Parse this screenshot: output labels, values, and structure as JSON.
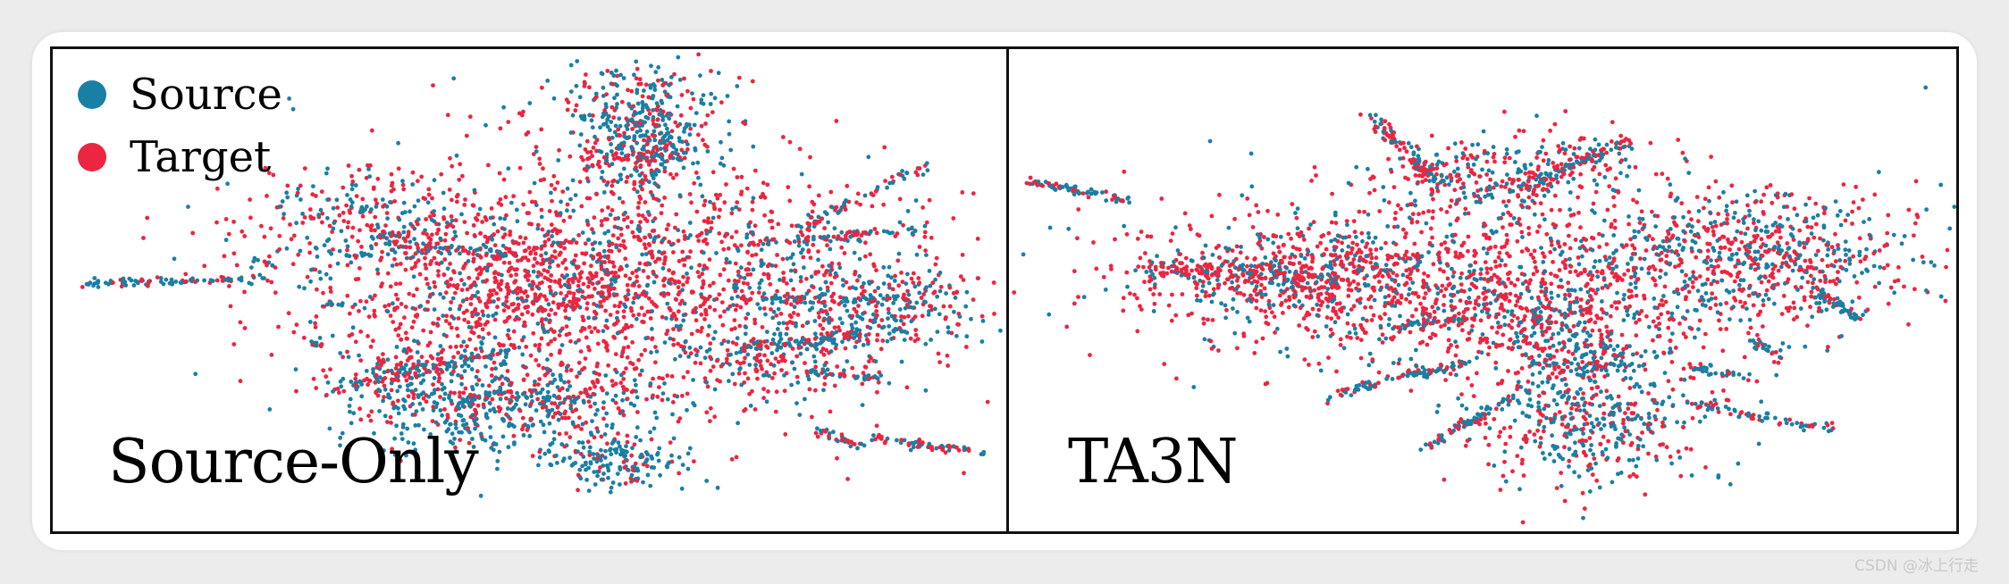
{
  "colors": {
    "source": "#1a7fa4",
    "target": "#ec2540"
  },
  "watermark": "CSDN @冰上行走",
  "chart_data": [
    {
      "type": "scatter",
      "title": "Source-Only",
      "legend": {
        "placement": "top-left",
        "entries": [
          {
            "name": "Source",
            "color": "#1a7fa4"
          },
          {
            "name": "Target",
            "color": "#ec2540"
          }
        ]
      },
      "grid": false,
      "axes": "none",
      "xlim": [
        0,
        100
      ],
      "ylim": [
        0,
        100
      ],
      "series": [
        {
          "name": "Source",
          "color": "#1a7fa4"
        },
        {
          "name": "Target",
          "color": "#ec2540"
        }
      ],
      "clusters": [
        {
          "cx": 60,
          "cy": 48,
          "sx": 18,
          "sy": 15,
          "n": 1500,
          "source_share": 0.3
        },
        {
          "cx": 44,
          "cy": 77,
          "sx": 8,
          "sy": 5,
          "n": 320,
          "source_share": 0.65
        },
        {
          "cx": 55,
          "cy": 73,
          "sx": 5,
          "sy": 3,
          "n": 120,
          "source_share": 0.55
        },
        {
          "cx": 62,
          "cy": 12,
          "sx": 3,
          "sy": 8,
          "n": 200,
          "source_share": 0.6
        },
        {
          "cx": 63,
          "cy": 18,
          "sx": 2,
          "sy": 3,
          "n": 80,
          "source_share": 0.7
        },
        {
          "cx": 88,
          "cy": 54,
          "sx": 6,
          "sy": 5,
          "n": 260,
          "source_share": 0.65
        },
        {
          "cx": 62,
          "cy": 9,
          "sx": 6,
          "sy": 4,
          "n": 110,
          "source_share": 0.5
        },
        {
          "cx": 61,
          "cy": 22,
          "sx": 4,
          "sy": 4,
          "n": 120,
          "source_share": 0.5
        },
        {
          "cx": 59,
          "cy": 88,
          "sx": 4,
          "sy": 3,
          "n": 180,
          "source_share": 0.75
        },
        {
          "cx": 33,
          "cy": 34,
          "sx": 7,
          "sy": 6,
          "n": 220,
          "source_share": 0.4
        },
        {
          "cx": 39,
          "cy": 68,
          "sx": 5,
          "sy": 4,
          "n": 150,
          "source_share": 0.55
        },
        {
          "cx": 76,
          "cy": 66,
          "sx": 4,
          "sy": 4,
          "n": 120,
          "source_share": 0.5
        },
        {
          "cx": 52,
          "cy": 49,
          "sx": 9,
          "sy": 8,
          "n": 500,
          "source_share": 0.12
        }
      ],
      "strands": [
        {
          "x1": 2,
          "y1": 48.5,
          "x2": 22,
          "y2": 47.5,
          "n": 90,
          "w": 0.5,
          "source_share": 0.75
        },
        {
          "x1": 35,
          "y1": 40,
          "x2": 49,
          "y2": 42,
          "n": 60,
          "w": 0.7,
          "source_share": 0.6
        },
        {
          "x1": 29,
          "y1": 72,
          "x2": 48,
          "y2": 63,
          "n": 90,
          "w": 0.7,
          "source_share": 0.6
        },
        {
          "x1": 73,
          "y1": 63,
          "x2": 86,
          "y2": 60,
          "n": 70,
          "w": 0.7,
          "source_share": 0.7
        },
        {
          "x1": 73,
          "y1": 40,
          "x2": 93,
          "y2": 36,
          "n": 80,
          "w": 0.6,
          "source_share": 0.5
        },
        {
          "x1": 79,
          "y1": 36,
          "x2": 93,
          "y2": 22,
          "n": 60,
          "w": 0.7,
          "source_share": 0.45
        },
        {
          "x1": 72,
          "y1": 52,
          "x2": 90,
          "y2": 52,
          "n": 70,
          "w": 0.6,
          "source_share": 0.7
        },
        {
          "x1": 80,
          "y1": 68,
          "x2": 88,
          "y2": 70,
          "n": 40,
          "w": 0.5,
          "source_share": 0.6
        },
        {
          "x1": 81,
          "y1": 81,
          "x2": 86,
          "y2": 85,
          "n": 30,
          "w": 0.5,
          "source_share": 0.6
        },
        {
          "x1": 87,
          "y1": 83,
          "x2": 99,
          "y2": 86,
          "n": 60,
          "w": 0.5,
          "source_share": 0.6
        },
        {
          "x1": 42,
          "y1": 75,
          "x2": 48,
          "y2": 72,
          "n": 30,
          "w": 0.5,
          "source_share": 0.8
        },
        {
          "x1": 26,
          "y1": 62,
          "x2": 28,
          "y2": 62,
          "n": 12,
          "w": 0.3,
          "source_share": 0.7
        },
        {
          "x1": 30,
          "y1": 42,
          "x2": 33,
          "y2": 42,
          "n": 12,
          "w": 0.3,
          "source_share": 0.7
        },
        {
          "x1": 28,
          "y1": 53,
          "x2": 32,
          "y2": 53,
          "n": 10,
          "w": 0.3,
          "source_share": 0.7
        },
        {
          "x1": 20,
          "y1": 43,
          "x2": 23,
          "y2": 45,
          "n": 10,
          "w": 0.3,
          "source_share": 0.6
        }
      ]
    },
    {
      "type": "scatter",
      "title": "TA3N",
      "grid": false,
      "axes": "none",
      "xlim": [
        0,
        100
      ],
      "ylim": [
        0,
        100
      ],
      "series": [
        {
          "name": "Source",
          "color": "#1a7fa4"
        },
        {
          "name": "Target",
          "color": "#ec2540"
        }
      ],
      "clusters": [
        {
          "cx": 48,
          "cy": 48,
          "sx": 18,
          "sy": 10,
          "n": 1300,
          "source_share": 0.3
        },
        {
          "cx": 80,
          "cy": 42,
          "sx": 9,
          "sy": 8,
          "n": 600,
          "source_share": 0.5
        },
        {
          "cx": 62,
          "cy": 79,
          "sx": 6,
          "sy": 7,
          "n": 420,
          "source_share": 0.5
        },
        {
          "cx": 57,
          "cy": 58,
          "sx": 5,
          "sy": 5,
          "n": 200,
          "source_share": 0.55
        },
        {
          "cx": 48,
          "cy": 25,
          "sx": 5,
          "sy": 4,
          "n": 150,
          "source_share": 0.45
        },
        {
          "cx": 59,
          "cy": 22,
          "sx": 5,
          "sy": 4,
          "n": 150,
          "source_share": 0.45
        },
        {
          "cx": 30,
          "cy": 47,
          "sx": 9,
          "sy": 5,
          "n": 300,
          "source_share": 0.3
        },
        {
          "cx": 62,
          "cy": 66,
          "sx": 4,
          "sy": 4,
          "n": 120,
          "source_share": 0.5
        }
      ],
      "strands": [
        {
          "x1": 1,
          "y1": 26,
          "x2": 12,
          "y2": 30,
          "n": 70,
          "w": 0.5,
          "source_share": 0.65
        },
        {
          "x1": 13,
          "y1": 45,
          "x2": 35,
          "y2": 48,
          "n": 160,
          "w": 1.3,
          "source_share": 0.35
        },
        {
          "x1": 38,
          "y1": 12,
          "x2": 45,
          "y2": 26,
          "n": 100,
          "w": 0.9,
          "source_share": 0.4
        },
        {
          "x1": 54,
          "y1": 28,
          "x2": 65,
          "y2": 17,
          "n": 100,
          "w": 0.9,
          "source_share": 0.45
        },
        {
          "x1": 33,
          "y1": 74,
          "x2": 45,
          "y2": 67,
          "n": 60,
          "w": 0.5,
          "source_share": 0.65
        },
        {
          "x1": 43,
          "y1": 69,
          "x2": 48,
          "y2": 66,
          "n": 30,
          "w": 0.5,
          "source_share": 0.6
        },
        {
          "x1": 43,
          "y1": 86,
          "x2": 53,
          "y2": 74,
          "n": 70,
          "w": 0.6,
          "source_share": 0.6
        },
        {
          "x1": 40,
          "y1": 58,
          "x2": 48,
          "y2": 56,
          "n": 40,
          "w": 0.6,
          "source_share": 0.5
        },
        {
          "x1": 72,
          "y1": 75,
          "x2": 88,
          "y2": 81,
          "n": 70,
          "w": 0.6,
          "source_share": 0.55
        },
        {
          "x1": 73,
          "y1": 67,
          "x2": 80,
          "y2": 70,
          "n": 30,
          "w": 0.5,
          "source_share": 0.6
        },
        {
          "x1": 86,
          "y1": 50,
          "x2": 91,
          "y2": 56,
          "n": 50,
          "w": 0.6,
          "source_share": 0.7
        },
        {
          "x1": 79,
          "y1": 61,
          "x2": 82,
          "y2": 64,
          "n": 20,
          "w": 0.4,
          "source_share": 0.6
        },
        {
          "x1": 98,
          "y1": 5,
          "x2": 98.3,
          "y2": 5,
          "n": 1,
          "w": 0.05,
          "source_share": 1.0
        }
      ]
    }
  ]
}
